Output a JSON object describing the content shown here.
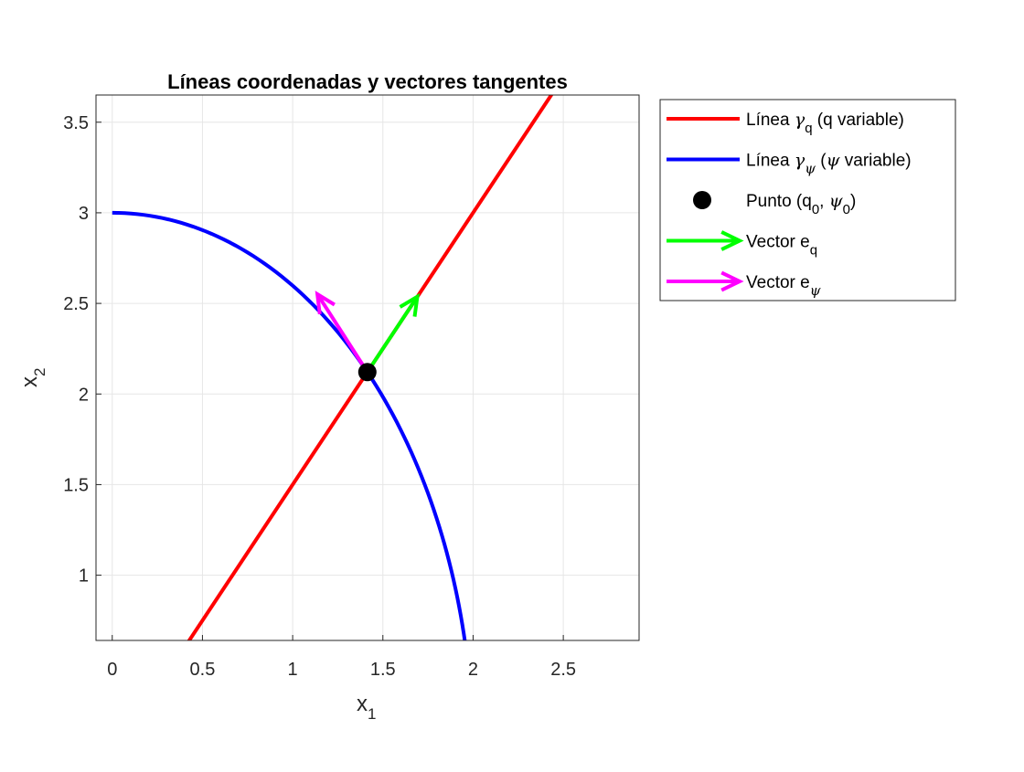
{
  "chart_data": {
    "type": "line",
    "title": "Líneas coordenadas y vectores tangentes",
    "xlabel": {
      "base": "x",
      "sub": "1"
    },
    "ylabel": {
      "base": "x",
      "sub": "2"
    },
    "xlim": [
      -0.09,
      2.92
    ],
    "ylim": [
      0.64,
      3.65
    ],
    "xticks": [
      0,
      0.5,
      1,
      1.5,
      2,
      2.5
    ],
    "xtick_labels": [
      "0",
      "0.5",
      "1",
      "1.5",
      "2",
      "2.5"
    ],
    "yticks": [
      1,
      1.5,
      2,
      2.5,
      3,
      3.5
    ],
    "ytick_labels": [
      "1",
      "1.5",
      "2",
      "2.5",
      "3",
      "3.5"
    ],
    "grid": true,
    "series": [
      {
        "name": "line-gamma-q",
        "color": "#ff0000",
        "kind": "line",
        "equation": "x2 = 1.5*x1",
        "x_range": [
          0,
          2.5
        ]
      },
      {
        "name": "line-gamma-psi",
        "color": "#0000ff",
        "kind": "ellipse",
        "equation": "x1 = 2 sin(psi), x2 = 3 cos(psi)",
        "psi_range_deg": [
          0,
          90
        ]
      },
      {
        "name": "point",
        "color": "#000000",
        "kind": "point",
        "x": 1.414,
        "y": 2.121
      },
      {
        "name": "vector-eq",
        "color": "#00ff00",
        "kind": "vector",
        "x": 1.414,
        "y": 2.121,
        "u": 0.277,
        "v": 0.416
      },
      {
        "name": "vector-epsi",
        "color": "#ff00ff",
        "kind": "vector",
        "x": 1.414,
        "y": 2.121,
        "u": -0.277,
        "v": 0.43
      }
    ],
    "legend": {
      "placement": "outside-right-top",
      "entries": [
        {
          "marker": "line",
          "color": "#ff0000",
          "parts": [
            {
              "t": "Línea "
            },
            {
              "t": "γ",
              "greek": true
            },
            {
              "t": "q",
              "sub": true
            },
            {
              "t": " (q variable)"
            }
          ]
        },
        {
          "marker": "line",
          "color": "#0000ff",
          "parts": [
            {
              "t": "Línea "
            },
            {
              "t": "γ",
              "greek": true
            },
            {
              "t": "ψ",
              "sub": true,
              "greek": true
            },
            {
              "t": " ("
            },
            {
              "t": "ψ",
              "greek": true
            },
            {
              "t": " variable)"
            }
          ]
        },
        {
          "marker": "dot",
          "color": "#000000",
          "parts": [
            {
              "t": "Punto (q"
            },
            {
              "t": "0",
              "sub": true
            },
            {
              "t": ", "
            },
            {
              "t": "ψ",
              "greek": true
            },
            {
              "t": "0",
              "sub": true
            },
            {
              "t": ")"
            }
          ]
        },
        {
          "marker": "arrow",
          "color": "#00ff00",
          "parts": [
            {
              "t": "Vector e"
            },
            {
              "t": "q",
              "sub": true
            }
          ]
        },
        {
          "marker": "arrow",
          "color": "#ff00ff",
          "parts": [
            {
              "t": "Vector e"
            },
            {
              "t": "ψ",
              "sub": true,
              "greek": true
            }
          ]
        }
      ]
    }
  }
}
